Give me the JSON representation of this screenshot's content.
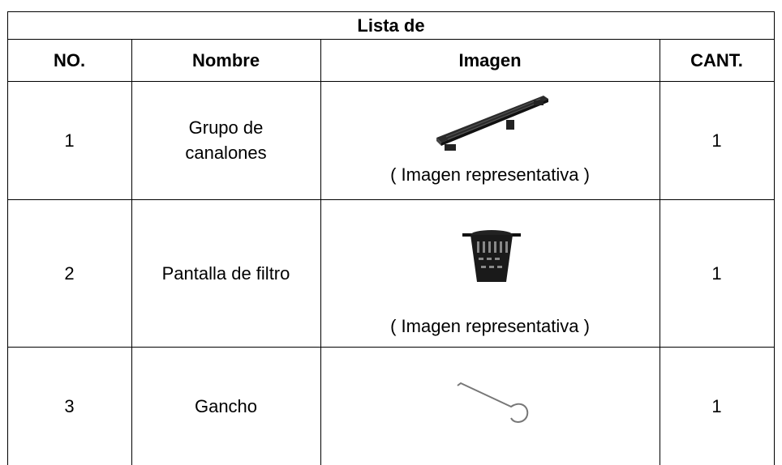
{
  "table": {
    "title": "Lista de",
    "headers": [
      "NO.",
      "Nombre",
      "Imagen",
      "CANT."
    ],
    "rows": [
      {
        "no": "1",
        "name": "Grupo de\ncanalones",
        "caption": "( Imagen representativa )",
        "qty": "1"
      },
      {
        "no": "2",
        "name": "Pantalla de filtro",
        "caption": "( Imagen representativa )",
        "qty": "1"
      },
      {
        "no": "3",
        "name": "Gancho",
        "qty": "1"
      }
    ]
  }
}
